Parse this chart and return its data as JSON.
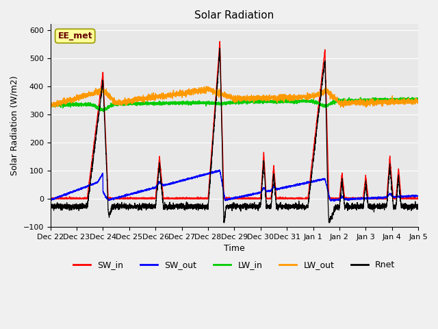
{
  "title": "Solar Radiation",
  "xlabel": "Time",
  "ylabel": "Solar Radiation (W/m2)",
  "ylim": [
    -100,
    620
  ],
  "annotation": "EE_met",
  "legend": [
    "SW_in",
    "SW_out",
    "LW_in",
    "LW_out",
    "Rnet"
  ],
  "colors": {
    "SW_in": "#ff0000",
    "SW_out": "#0000ff",
    "LW_in": "#00cc00",
    "LW_out": "#ff9900",
    "Rnet": "#000000"
  },
  "x_tick_labels": [
    "Dec 22",
    "Dec 23",
    "Dec 24",
    "Dec 25",
    "Dec 26",
    "Dec 27",
    "Dec 28",
    "Dec 29",
    "Dec 30",
    "Dec 31",
    "Jan 1",
    "Jan 2",
    "Jan 3",
    "Jan 4",
    "Jan 5"
  ],
  "background_color": "#e8e8e8",
  "fig_facecolor": "#f0f0f0"
}
